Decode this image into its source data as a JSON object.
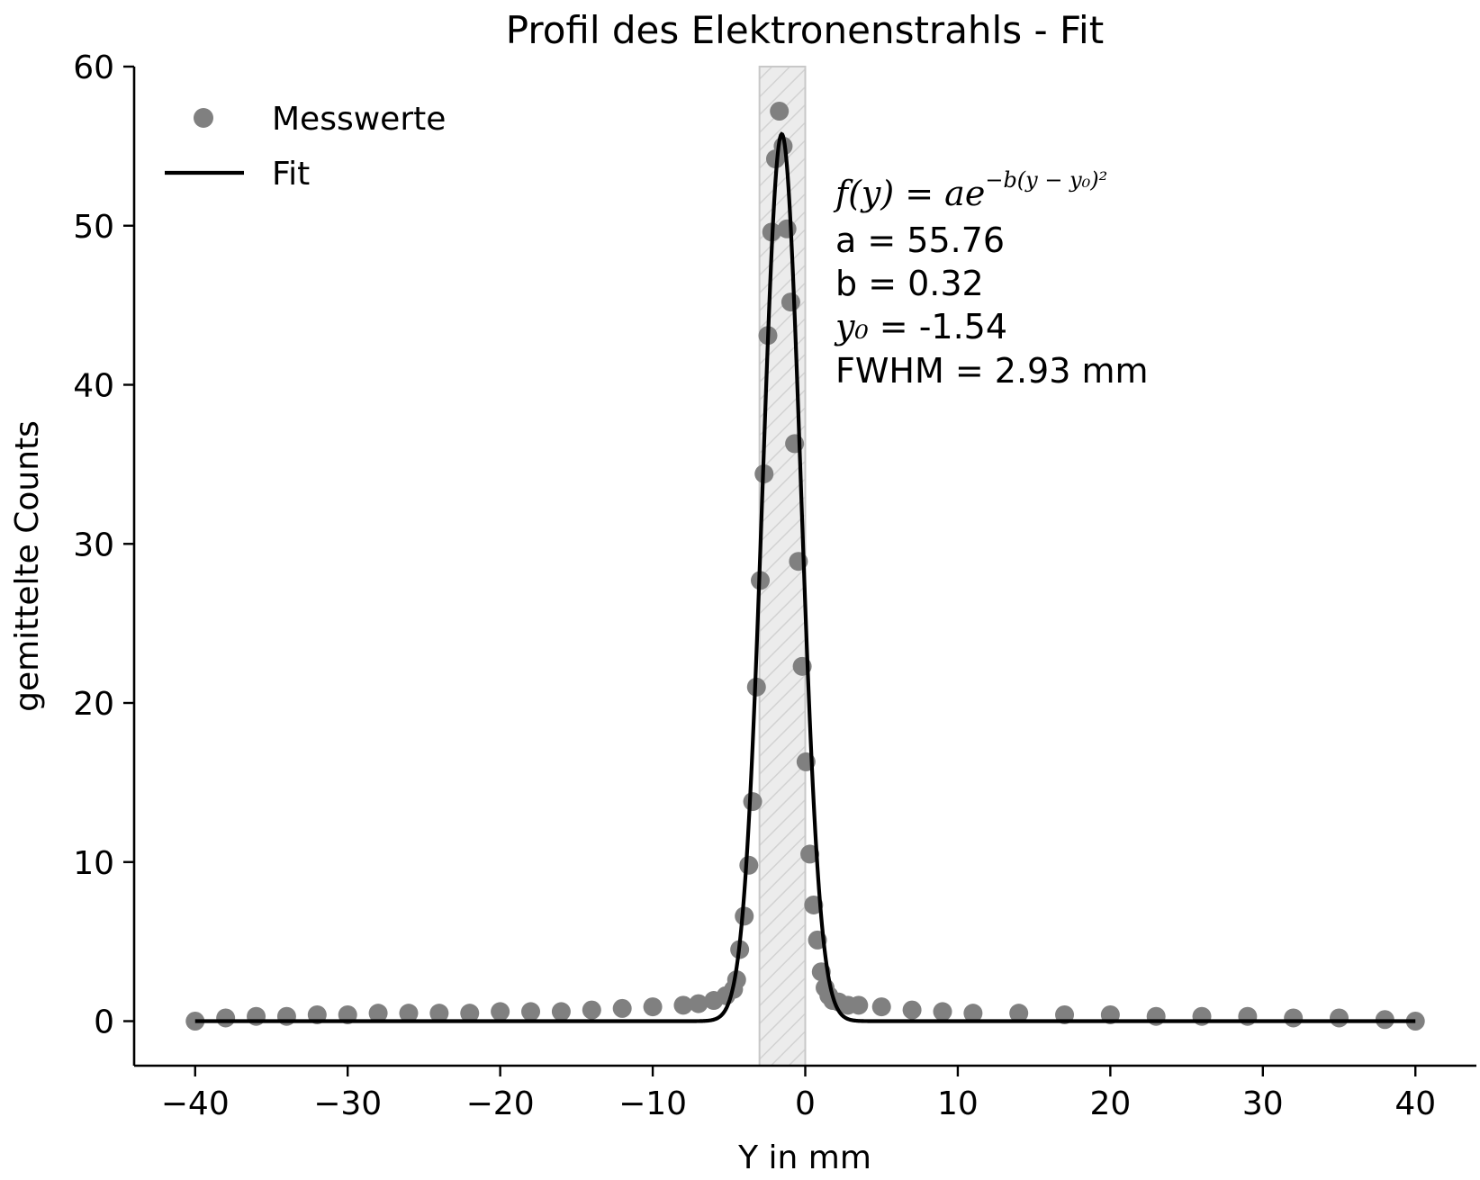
{
  "chart_data": {
    "type": "scatter",
    "title": "Profil des Elektronenstrahls - Fit",
    "xlabel": "Y in mm",
    "ylabel": "gemittelte Counts",
    "xlim": [
      -44,
      44
    ],
    "ylim": [
      -2.8,
      60
    ],
    "xticks": [
      -40,
      -30,
      -20,
      -10,
      0,
      10,
      20,
      30,
      40
    ],
    "xtick_labels": [
      "−40",
      "−30",
      "−20",
      "−10",
      "0",
      "10",
      "20",
      "30",
      "40"
    ],
    "yticks": [
      0,
      10,
      20,
      30,
      40,
      50,
      60
    ],
    "ytick_labels": [
      "0",
      "10",
      "20",
      "30",
      "40",
      "50",
      "60"
    ],
    "grid": false,
    "legend_position": "top-left",
    "colors": {
      "points": "#808080",
      "fit": "#000000",
      "band_fill": "#ececec",
      "band_edge": "#c8c8c8"
    },
    "series": [
      {
        "name": "Messwerte",
        "kind": "points",
        "x": [
          -40,
          -38,
          -36,
          -34,
          -32,
          -30,
          -28,
          -26,
          -24,
          -22,
          -20,
          -18,
          -16,
          -14,
          -12,
          -10,
          -8,
          -7,
          -6,
          -5.2,
          -4.7,
          -4.5,
          -4.3,
          -4.0,
          -3.7,
          -3.45,
          -3.2,
          -2.95,
          -2.7,
          -2.45,
          -2.2,
          -1.95,
          -1.7,
          -1.45,
          -1.2,
          -0.95,
          -0.7,
          -0.45,
          -0.2,
          0.05,
          0.3,
          0.55,
          0.8,
          1.05,
          1.3,
          1.55,
          1.8,
          2.2,
          2.8,
          3.5,
          5,
          7,
          9,
          11,
          14,
          17,
          20,
          23,
          26,
          29,
          32,
          35,
          38,
          40
        ],
        "y": [
          0,
          0.2,
          0.3,
          0.3,
          0.4,
          0.4,
          0.5,
          0.5,
          0.5,
          0.5,
          0.6,
          0.6,
          0.6,
          0.7,
          0.8,
          0.9,
          1.0,
          1.1,
          1.3,
          1.6,
          2.0,
          2.6,
          4.5,
          6.6,
          9.8,
          13.8,
          21.0,
          27.7,
          34.4,
          43.1,
          49.6,
          54.2,
          57.2,
          55.0,
          49.8,
          45.2,
          36.3,
          28.9,
          22.3,
          16.3,
          10.5,
          7.3,
          5.1,
          3.1,
          2.1,
          1.6,
          1.3,
          1.2,
          1.0,
          1.0,
          0.9,
          0.7,
          0.6,
          0.5,
          0.5,
          0.4,
          0.4,
          0.3,
          0.3,
          0.3,
          0.2,
          0.2,
          0.1,
          0
        ]
      },
      {
        "name": "Fit",
        "kind": "line",
        "formula": "a*exp(-b*(y-y0)^2)",
        "params": {
          "a": 55.76,
          "b": 0.32,
          "y0": -1.54
        }
      }
    ],
    "shaded_band": {
      "x_range": [
        -3.0,
        0.0
      ],
      "hatch": true
    },
    "annotations": {
      "formula_prefix": "f(y) = ae",
      "formula_exponent": "−b(y − y₀)²",
      "a_line": "a = 55.76",
      "b_line": "b = 0.32",
      "y0_symbol": "y₀",
      "y0_value": " = -1.54",
      "fwhm_line": "FWHM = 2.93 mm"
    }
  }
}
